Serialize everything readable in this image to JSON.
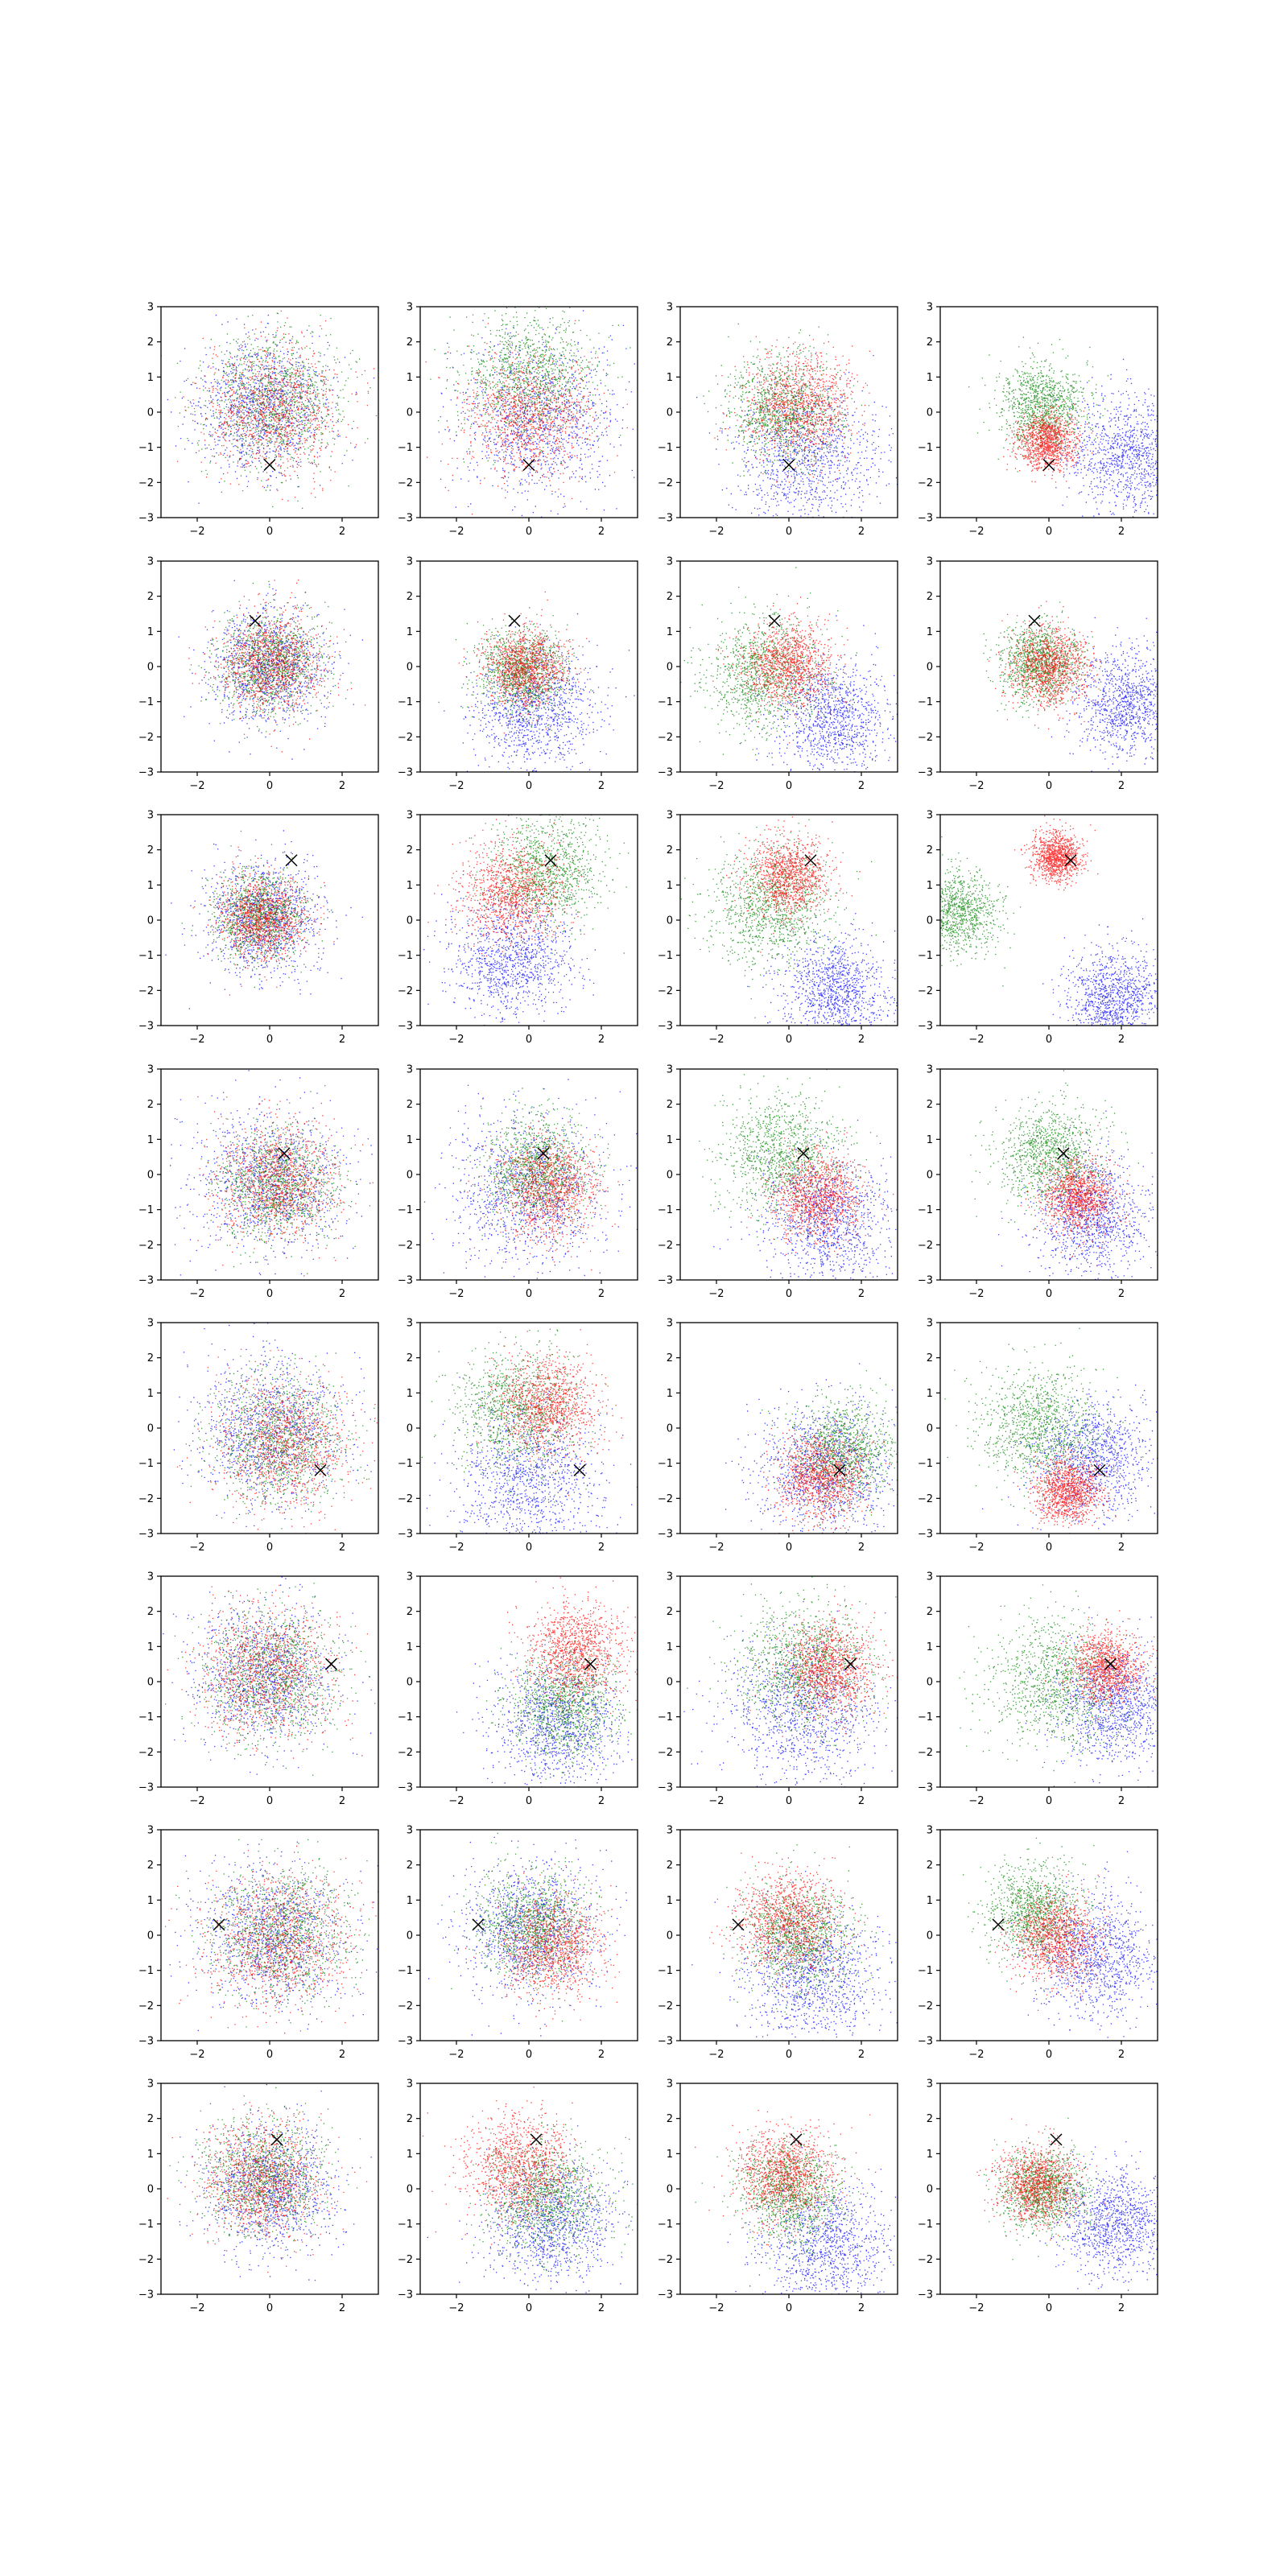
{
  "figure": {
    "rows": 8,
    "cols": 4,
    "colors": {
      "blue": "#0000ff",
      "green": "#008000",
      "red": "#ff0000",
      "marker": "#000000"
    }
  },
  "chart_data": {
    "type": "scatter",
    "xlim": [
      -3,
      3
    ],
    "ylim": [
      -3,
      3
    ],
    "xticks": [
      "−2",
      "0",
      "2"
    ],
    "yticks": [
      "3",
      "2",
      "1",
      "0",
      "−1",
      "−2",
      "−3"
    ],
    "marker_symbol": "×",
    "rows": [
      {
        "marker": [
          0.0,
          -1.5
        ],
        "panels": [
          {
            "blue": [
              -0.2,
              0.2,
              0.95
            ],
            "green": [
              0.1,
              0.3,
              0.95
            ],
            "red": [
              0.1,
              0.1,
              0.95
            ]
          },
          {
            "blue": [
              0.2,
              -0.2,
              1.1
            ],
            "green": [
              0.0,
              1.1,
              0.9
            ],
            "red": [
              0.0,
              -0.1,
              0.85
            ]
          },
          {
            "blue": [
              0.5,
              -1.3,
              1.0
            ],
            "green": [
              -0.2,
              0.1,
              0.75
            ],
            "red": [
              0.3,
              0.2,
              0.75
            ]
          },
          {
            "blue": [
              2.2,
              -1.2,
              0.8
            ],
            "green": [
              -0.2,
              0.2,
              0.6
            ],
            "red": [
              -0.1,
              -0.8,
              0.4
            ]
          }
        ]
      },
      {
        "marker": [
          -0.4,
          1.3
        ],
        "panels": [
          {
            "blue": [
              0.0,
              0.0,
              0.8
            ],
            "green": [
              0.0,
              0.1,
              0.7
            ],
            "red": [
              0.0,
              0.1,
              0.7
            ]
          },
          {
            "blue": [
              0.2,
              -1.2,
              0.85
            ],
            "green": [
              -0.2,
              -0.1,
              0.6
            ],
            "red": [
              -0.1,
              0.0,
              0.55
            ]
          },
          {
            "blue": [
              1.2,
              -1.5,
              0.8
            ],
            "green": [
              -0.7,
              -0.2,
              0.8
            ],
            "red": [
              0.0,
              0.1,
              0.6
            ]
          },
          {
            "blue": [
              2.2,
              -1.0,
              0.75
            ],
            "green": [
              -0.3,
              0.1,
              0.55
            ],
            "red": [
              0.0,
              0.0,
              0.55
            ]
          }
        ]
      },
      {
        "marker": [
          0.6,
          1.7
        ],
        "panels": [
          {
            "blue": [
              -0.2,
              0.0,
              0.8
            ],
            "green": [
              -0.3,
              0.1,
              0.6
            ],
            "red": [
              -0.2,
              0.1,
              0.6
            ]
          },
          {
            "blue": [
              -0.5,
              -1.1,
              0.85
            ],
            "green": [
              0.5,
              1.4,
              0.75
            ],
            "red": [
              -0.5,
              0.8,
              0.7
            ]
          },
          {
            "blue": [
              1.3,
              -2.0,
              0.75
            ],
            "green": [
              -0.5,
              0.4,
              0.85
            ],
            "red": [
              0.0,
              1.3,
              0.55
            ]
          },
          {
            "blue": [
              1.8,
              -2.2,
              0.65
            ],
            "green": [
              -2.6,
              0.2,
              0.6
            ],
            "red": [
              0.2,
              1.8,
              0.35
            ]
          }
        ]
      },
      {
        "marker": [
          0.4,
          0.6
        ],
        "panels": [
          {
            "blue": [
              0.0,
              -0.2,
              1.0
            ],
            "green": [
              0.2,
              -0.3,
              0.8
            ],
            "red": [
              0.2,
              -0.2,
              0.8
            ]
          },
          {
            "blue": [
              0.0,
              -0.5,
              1.1
            ],
            "green": [
              0.2,
              0.2,
              0.7
            ],
            "red": [
              0.5,
              -0.4,
              0.7
            ]
          },
          {
            "blue": [
              1.0,
              -1.3,
              0.9
            ],
            "green": [
              -0.2,
              0.6,
              0.8
            ],
            "red": [
              0.8,
              -0.6,
              0.6
            ]
          },
          {
            "blue": [
              1.2,
              -1.2,
              0.8
            ],
            "green": [
              0.0,
              0.6,
              0.7
            ],
            "red": [
              0.8,
              -0.6,
              0.5
            ]
          }
        ]
      },
      {
        "marker": [
          1.4,
          -1.2
        ],
        "panels": [
          {
            "blue": [
              0.0,
              0.0,
              1.0
            ],
            "green": [
              0.3,
              -0.3,
              0.9
            ],
            "red": [
              0.4,
              -0.4,
              0.9
            ]
          },
          {
            "blue": [
              0.0,
              -1.4,
              1.0
            ],
            "green": [
              -0.4,
              0.5,
              0.85
            ],
            "red": [
              0.5,
              0.7,
              0.7
            ]
          },
          {
            "blue": [
              1.0,
              -1.2,
              0.95
            ],
            "green": [
              1.5,
              -0.6,
              0.7
            ],
            "red": [
              0.9,
              -1.4,
              0.6
            ]
          },
          {
            "blue": [
              1.2,
              -0.9,
              0.8
            ],
            "green": [
              -0.3,
              0.1,
              0.8
            ],
            "red": [
              0.5,
              -1.8,
              0.45
            ]
          }
        ]
      },
      {
        "marker": [
          1.7,
          0.5
        ],
        "panels": [
          {
            "blue": [
              -0.2,
              0.2,
              1.0
            ],
            "green": [
              0.0,
              0.2,
              0.9
            ],
            "red": [
              -0.1,
              0.3,
              0.9
            ]
          },
          {
            "blue": [
              0.8,
              -1.2,
              0.9
            ],
            "green": [
              1.0,
              -0.6,
              0.75
            ],
            "red": [
              1.3,
              0.9,
              0.65
            ]
          },
          {
            "blue": [
              0.4,
              -0.8,
              1.0
            ],
            "green": [
              0.4,
              0.5,
              0.9
            ],
            "red": [
              1.1,
              0.4,
              0.65
            ]
          },
          {
            "blue": [
              1.8,
              -0.7,
              0.8
            ],
            "green": [
              0.2,
              0.0,
              0.9
            ],
            "red": [
              1.6,
              0.4,
              0.5
            ]
          }
        ]
      },
      {
        "marker": [
          -1.4,
          0.3
        ],
        "panels": [
          {
            "blue": [
              0.0,
              0.0,
              1.0
            ],
            "green": [
              0.3,
              0.1,
              0.95
            ],
            "red": [
              0.3,
              -0.1,
              0.95
            ]
          },
          {
            "blue": [
              0.0,
              0.2,
              0.95
            ],
            "green": [
              0.1,
              0.3,
              0.75
            ],
            "red": [
              0.6,
              -0.3,
              0.7
            ]
          },
          {
            "blue": [
              0.7,
              -1.2,
              0.9
            ],
            "green": [
              0.3,
              0.0,
              0.75
            ],
            "red": [
              0.0,
              0.4,
              0.7
            ]
          },
          {
            "blue": [
              1.4,
              -0.6,
              0.85
            ],
            "green": [
              -0.4,
              0.7,
              0.65
            ],
            "red": [
              0.2,
              -0.1,
              0.6
            ]
          }
        ]
      },
      {
        "marker": [
          0.2,
          1.4
        ],
        "panels": [
          {
            "blue": [
              0.0,
              0.0,
              0.9
            ],
            "green": [
              -0.2,
              0.4,
              0.8
            ],
            "red": [
              -0.2,
              0.2,
              0.8
            ]
          },
          {
            "blue": [
              0.6,
              -0.9,
              0.9
            ],
            "green": [
              0.5,
              -0.3,
              0.8
            ],
            "red": [
              -0.3,
              0.6,
              0.75
            ]
          },
          {
            "blue": [
              1.0,
              -1.6,
              0.9
            ],
            "green": [
              0.0,
              -0.1,
              0.7
            ],
            "red": [
              -0.1,
              0.4,
              0.65
            ]
          },
          {
            "blue": [
              1.8,
              -0.9,
              0.75
            ],
            "green": [
              -0.2,
              0.0,
              0.55
            ],
            "red": [
              -0.3,
              0.1,
              0.55
            ]
          }
        ]
      }
    ]
  }
}
